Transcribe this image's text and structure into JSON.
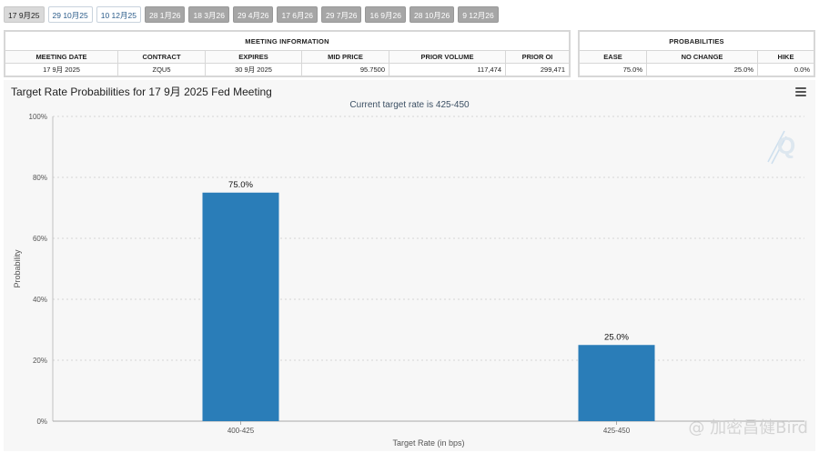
{
  "tabs": [
    {
      "label": "17 9月25",
      "state": "active"
    },
    {
      "label": "29 10月25",
      "state": "light"
    },
    {
      "label": "10 12月25",
      "state": "light"
    },
    {
      "label": "28 1月26",
      "state": "dark"
    },
    {
      "label": "18 3月26",
      "state": "dark"
    },
    {
      "label": "29 4月26",
      "state": "dark"
    },
    {
      "label": "17 6月26",
      "state": "dark"
    },
    {
      "label": "29 7月26",
      "state": "dark"
    },
    {
      "label": "16 9月26",
      "state": "dark"
    },
    {
      "label": "28 10月26",
      "state": "dark"
    },
    {
      "label": "9 12月26",
      "state": "dark"
    }
  ],
  "meeting_info": {
    "title": "MEETING INFORMATION",
    "headers": [
      "MEETING DATE",
      "CONTRACT",
      "EXPIRES",
      "MID PRICE",
      "PRIOR VOLUME",
      "PRIOR OI"
    ],
    "values": [
      "17 9月 2025",
      "ZQU5",
      "30 9月 2025",
      "95.7500",
      "117,474",
      "299,471"
    ]
  },
  "probabilities": {
    "title": "PROBABILITIES",
    "headers": [
      "EASE",
      "NO CHANGE",
      "HIKE"
    ],
    "values": [
      "75.0%",
      "25.0%",
      "0.0%"
    ]
  },
  "chart": {
    "title": "Target Rate Probabilities for 17 9月 2025 Fed Meeting",
    "subtitle": "Current target rate is 425-450",
    "watermark": "@ 加密昌健Bird",
    "bar_color": "#2a7db8"
  },
  "chart_data": {
    "type": "bar",
    "categories": [
      "400-425",
      "425-450"
    ],
    "values": [
      75.0,
      25.0
    ],
    "data_labels": [
      "75.0%",
      "25.0%"
    ],
    "xlabel": "Target Rate (in bps)",
    "ylabel": "Probability",
    "ylim": [
      0,
      100
    ],
    "yticks": [
      "0%",
      "20%",
      "40%",
      "60%",
      "80%",
      "100%"
    ],
    "grid": true
  }
}
